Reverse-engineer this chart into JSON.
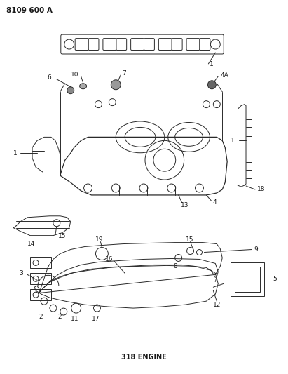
{
  "title": "8109 600 A",
  "subtitle": "318 ENGINE",
  "bg_color": "#ffffff",
  "line_color": "#2a2a2a",
  "text_color": "#1a1a1a",
  "fig_width": 4.11,
  "fig_height": 5.33,
  "dpi": 100
}
